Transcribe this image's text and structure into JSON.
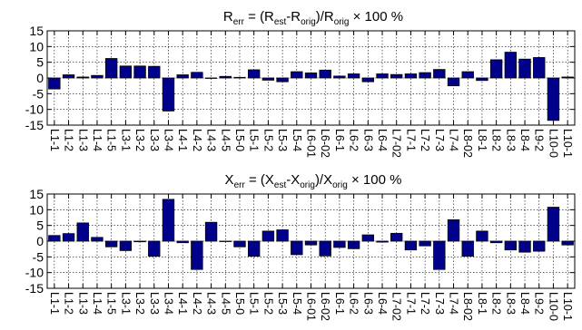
{
  "chart_data": [
    {
      "type": "bar",
      "title": {
        "symbol": "R",
        "symbol_sub": "err",
        "p1": " = (R",
        "s1": "est",
        "p2": "-R",
        "s2": "orig",
        "p3": ")/R",
        "s3": "orig",
        "p4": " × 100 %"
      },
      "ylim": [
        -15,
        15
      ],
      "yticks": [
        15,
        10,
        5,
        0,
        -5,
        -10,
        -15
      ],
      "grid": true,
      "categories": [
        "L1-1",
        "L1-2",
        "L1-3",
        "L1-4",
        "L1-5",
        "L3-1",
        "L3-2",
        "L3-3",
        "L3-4",
        "L4-1",
        "L4-2",
        "L4-3",
        "L4-5",
        "L5-0",
        "L5-1",
        "L5-2",
        "L5-3",
        "L5-4",
        "L6-01",
        "L6-02",
        "L6-1",
        "L6-2",
        "L6-3",
        "L6-4",
        "L7-02",
        "L7-1",
        "L7-2",
        "L7-3",
        "L7-4",
        "L8-02",
        "L8-1",
        "L8-2",
        "L8-3",
        "L8-4",
        "L9-2",
        "L10-0",
        "L10-1"
      ],
      "values": [
        -3.5,
        1.0,
        0.3,
        0.8,
        6.2,
        3.8,
        3.8,
        3.7,
        -10.5,
        1.0,
        1.8,
        0.0,
        0.5,
        0.2,
        2.6,
        -0.7,
        -1.2,
        2.0,
        1.6,
        2.5,
        0.6,
        1.3,
        -1.2,
        1.3,
        1.1,
        1.3,
        1.7,
        2.7,
        -2.5,
        2.0,
        -0.8,
        5.8,
        8.2,
        6.0,
        6.5,
        -13.5,
        0.3
      ]
    },
    {
      "type": "bar",
      "title": {
        "symbol": "X",
        "symbol_sub": "err",
        "p1": " = (X",
        "s1": "est",
        "p2": "-X",
        "s2": "orig",
        "p3": ")/X",
        "s3": "orig",
        "p4": " × 100 %"
      },
      "ylim": [
        -15,
        15
      ],
      "yticks": [
        15,
        10,
        5,
        0,
        -5,
        -10,
        -15
      ],
      "grid": true,
      "categories": [
        "L1-1",
        "L1-2",
        "L1-3",
        "L1-4",
        "L1-5",
        "L3-1",
        "L3-2",
        "L3-3",
        "L3-4",
        "L4-1",
        "L4-2",
        "L4-3",
        "L4-5",
        "L5-0",
        "L5-1",
        "L5-2",
        "L5-3",
        "L5-4",
        "L6-01",
        "L6-02",
        "L6-1",
        "L6-2",
        "L6-3",
        "L6-4",
        "L7-02",
        "L7-1",
        "L7-2",
        "L7-3",
        "L7-4",
        "L8-02",
        "L8-1",
        "L8-2",
        "L8-3",
        "L8-4",
        "L9-2",
        "L10-0",
        "L10-1"
      ],
      "values": [
        1.8,
        2.4,
        5.8,
        1.2,
        -1.8,
        -3.0,
        -0.2,
        -4.8,
        13.3,
        -0.5,
        -9.0,
        6.0,
        0.0,
        -1.8,
        -4.8,
        3.2,
        3.6,
        -4.3,
        -1.2,
        -4.7,
        -2.0,
        -2.4,
        2.0,
        -0.3,
        2.5,
        -2.8,
        -1.5,
        -9.0,
        6.8,
        -4.8,
        3.2,
        -0.5,
        -2.8,
        -3.5,
        -3.2,
        10.8,
        -1.2
      ]
    }
  ]
}
